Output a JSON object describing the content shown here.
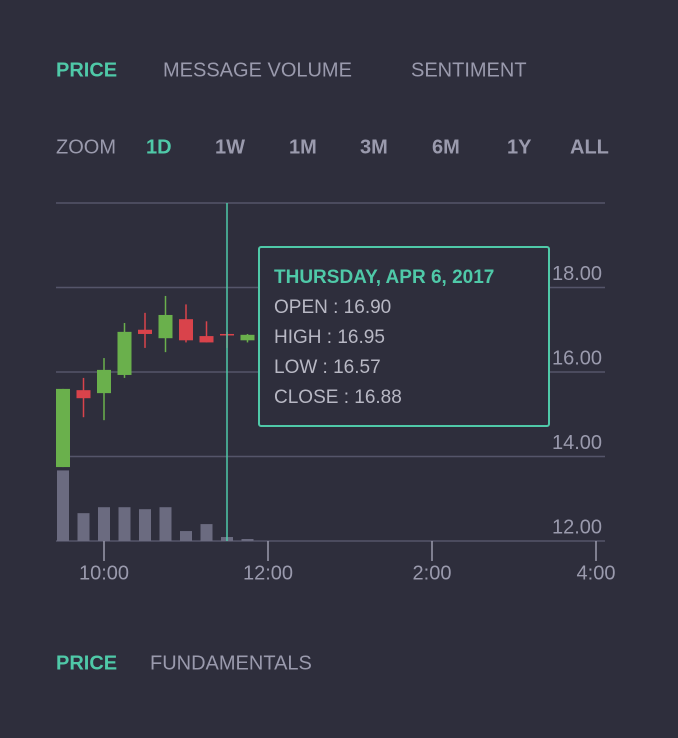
{
  "tabs": [
    "PRICE",
    "MESSAGE VOLUME",
    "SENTIMENT"
  ],
  "zoom": {
    "label": "ZOOM",
    "options": [
      "1D",
      "1W",
      "1M",
      "3M",
      "6M",
      "1Y",
      "ALL"
    ]
  },
  "chart_data": {
    "type": "candlestick",
    "x": [
      9.5,
      9.75,
      10,
      10.25,
      10.5,
      10.75,
      11,
      11.25,
      11.5,
      11.75
    ],
    "open": [
      13.75,
      15.57,
      15.5,
      15.93,
      17.0,
      16.8,
      17.25,
      16.85,
      16.9,
      16.75
    ],
    "high": [
      15.6,
      15.86,
      16.33,
      17.16,
      17.4,
      17.8,
      17.6,
      17.2,
      16.95,
      16.9
    ],
    "low": [
      13.75,
      14.93,
      14.86,
      15.86,
      16.57,
      16.47,
      16.7,
      16.7,
      16.57,
      16.7
    ],
    "close": [
      15.6,
      15.38,
      16.05,
      16.95,
      16.9,
      17.35,
      16.75,
      16.7,
      16.88,
      16.88
    ],
    "volume": [
      71,
      28,
      34,
      34,
      32,
      34,
      10,
      17,
      4,
      2
    ],
    "up_color": "#6ab04c",
    "down_color": "#d9434b",
    "volume_color": "#6b6b80",
    "xlim": [
      9.5,
      16
    ],
    "xticks": [
      {
        "value": 10,
        "label": "10:00"
      },
      {
        "value": 12,
        "label": "12:00"
      },
      {
        "value": 14,
        "label": "2:00"
      },
      {
        "value": 16,
        "label": "4:00"
      }
    ],
    "ylim": [
      12,
      20
    ],
    "yticks": [
      {
        "value": 12,
        "label": "12.00"
      },
      {
        "value": 14,
        "label": "14.00"
      },
      {
        "value": 16,
        "label": "16.00"
      },
      {
        "value": 18,
        "label": "18.00"
      }
    ],
    "y2lim": [
      0,
      340
    ],
    "grid": true,
    "crosshair_x": 11.5
  },
  "tooltip": {
    "title": "THURSDAY, APR 6, 2017",
    "rows": [
      "OPEN : 16.90",
      "HIGH : 16.95",
      "LOW : 16.57",
      "CLOSE : 16.88"
    ]
  },
  "bottom_tabs": [
    "PRICE",
    "FUNDAMENTALS"
  ]
}
